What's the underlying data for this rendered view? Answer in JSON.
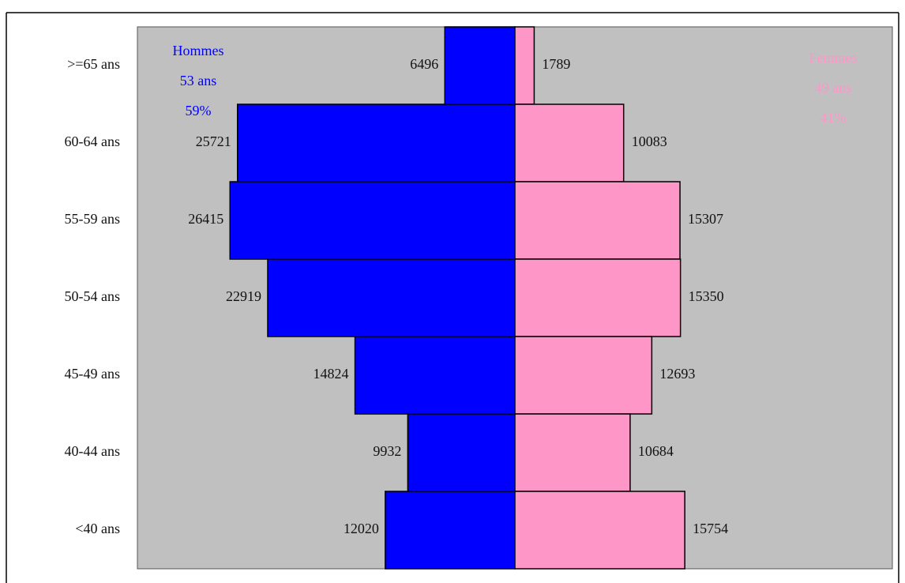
{
  "chart_data": {
    "type": "pyramid",
    "categories": [
      ">=65 ans",
      "60-64 ans",
      "55-59 ans",
      "50-54 ans",
      "45-49 ans",
      "40-44 ans",
      "<40 ans"
    ],
    "series": [
      {
        "name": "Hommes",
        "color": "#0000ff",
        "side": "left",
        "values": [
          6496,
          25721,
          26415,
          22919,
          14824,
          9932,
          12020
        ],
        "annotations": [
          "53 ans",
          "59%"
        ]
      },
      {
        "name": "Femmes",
        "color": "#ff96c8",
        "side": "right",
        "values": [
          1789,
          10083,
          15307,
          15350,
          12693,
          10684,
          15754
        ],
        "annotations": [
          "49 ans",
          "41%"
        ]
      }
    ],
    "xlim": [
      -35000,
      35000
    ],
    "background": "#c0c0c0"
  }
}
